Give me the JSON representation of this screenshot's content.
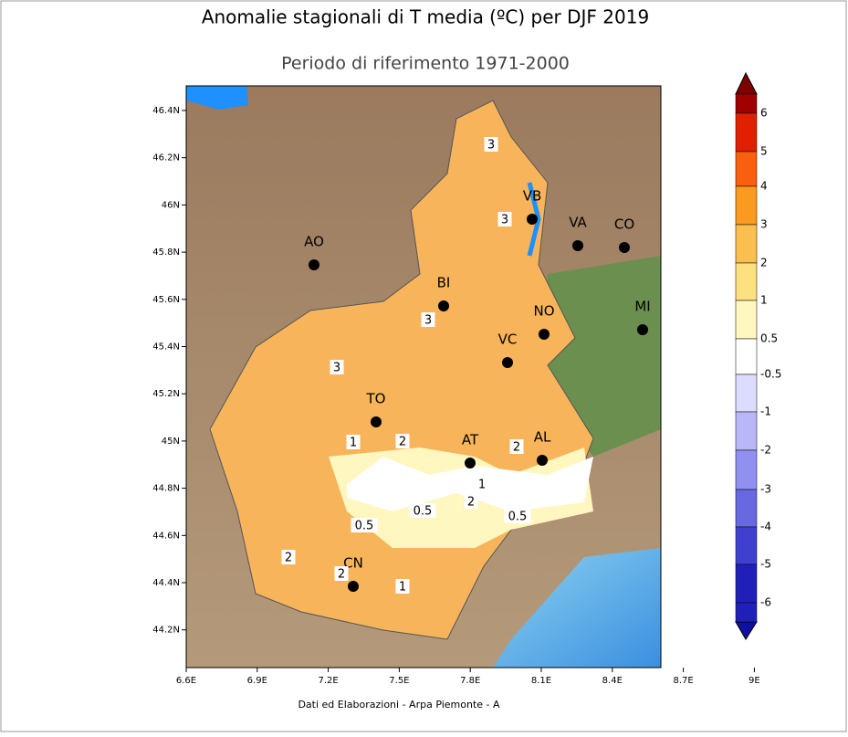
{
  "title": "Anomalie stagionali di T media (ºC) per DJF 2019",
  "subtitle": "Periodo di riferimento 1971-2000",
  "map": {
    "lon_ticks": [
      "6.6E",
      "6.9E",
      "7.2E",
      "7.5E",
      "7.8E",
      "8.1E",
      "8.4E",
      "8.7E",
      "9E"
    ],
    "lat_ticks": [
      "46.4N",
      "46.2N",
      "46N",
      "45.8N",
      "45.6N",
      "45.4N",
      "45.2N",
      "45N",
      "44.8N",
      "44.6N",
      "44.4N",
      "44.2N"
    ],
    "cities": [
      "VB",
      "VA",
      "CO",
      "AO",
      "BI",
      "MI",
      "NO",
      "VC",
      "TO",
      "AT",
      "AL",
      "CN"
    ],
    "contour_labels": [
      "3",
      "3",
      "3",
      "3",
      "1",
      "2",
      "2",
      "1",
      "2",
      "0.5",
      "0.5",
      "0.5",
      "2",
      "2",
      "1"
    ]
  },
  "colorbar": {
    "labels": [
      "6",
      "5",
      "4",
      "3",
      "2",
      "1",
      "0.5",
      "-0.5",
      "-1",
      "-2",
      "-3",
      "-4",
      "-5",
      "-6"
    ]
  },
  "footer": "Dati ed Elaborazioni - Arpa Piemonte - A"
}
